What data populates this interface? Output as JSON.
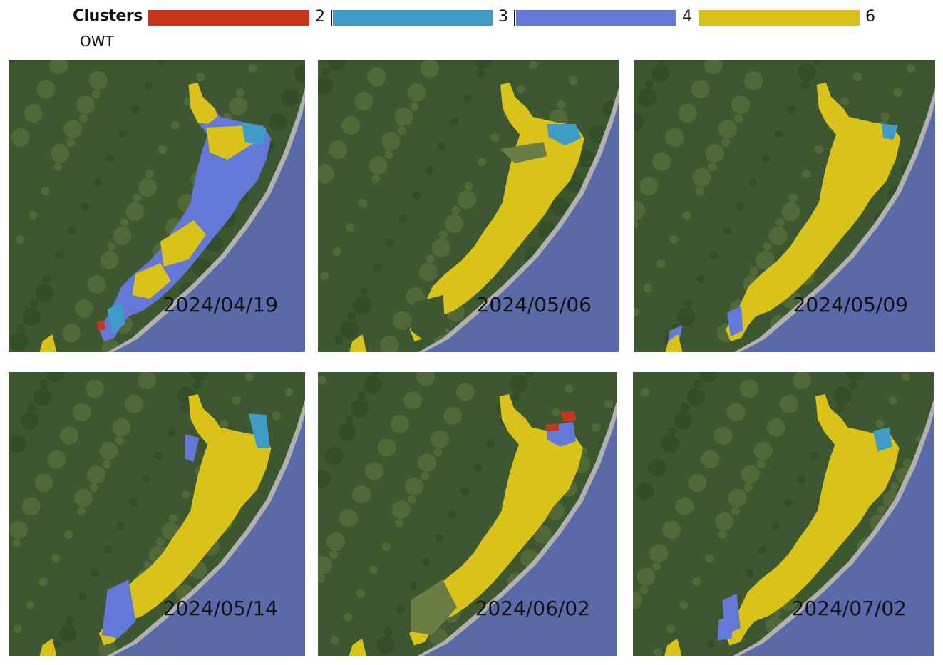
{
  "legend": {
    "title": "Clusters",
    "subtitle": "OWT",
    "items": [
      {
        "label": "2",
        "color": "#c8341c"
      },
      {
        "label": "3",
        "color": "#3f9cc6"
      },
      {
        "label": "4",
        "color": "#6478d8"
      },
      {
        "label": "6",
        "color": "#d9c21a"
      }
    ]
  },
  "colors": {
    "ocean": "#5a6aa8",
    "land_base": "#3d5831",
    "land_light": "#6a7d45",
    "land_dark": "#28421f",
    "beach": "#c9c3b2"
  },
  "panels": [
    {
      "date": "2024/04/19"
    },
    {
      "date": "2024/05/06"
    },
    {
      "date": "2024/05/09"
    },
    {
      "date": "2024/05/14"
    },
    {
      "date": "2024/06/02"
    },
    {
      "date": "2024/07/02"
    }
  ]
}
